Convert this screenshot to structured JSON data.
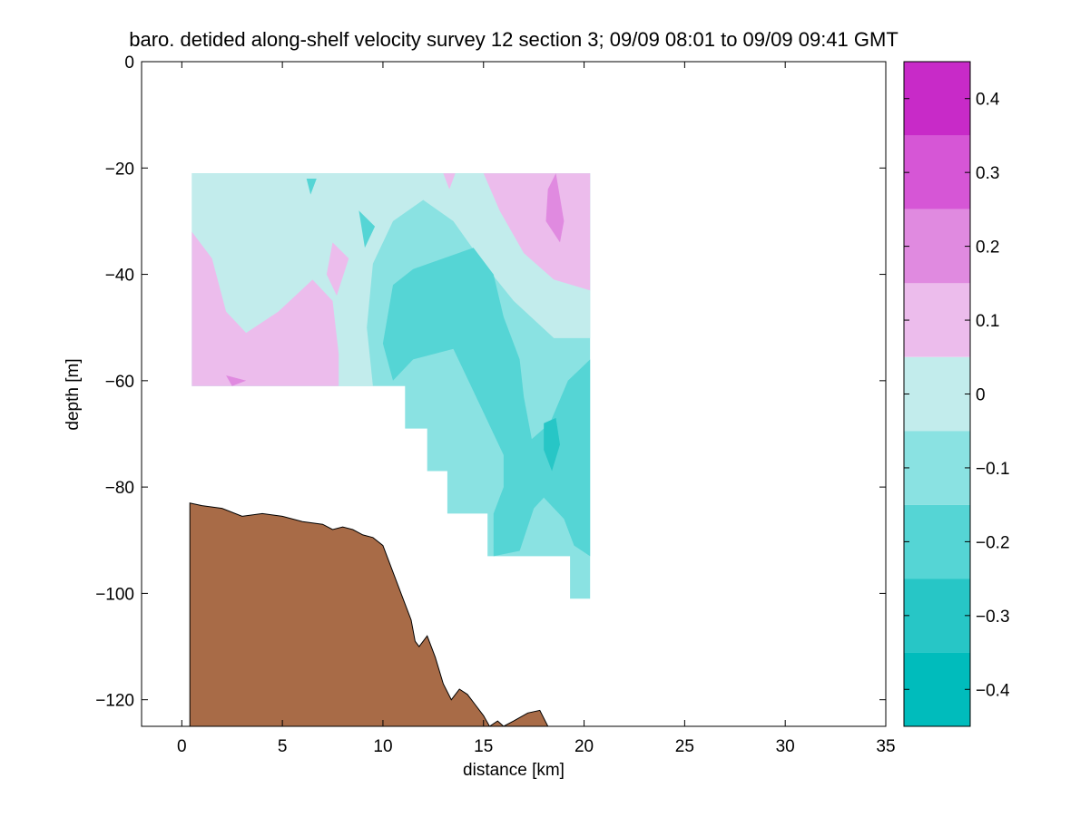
{
  "chart_data": {
    "type": "contour",
    "title": "baro. detided along-shelf velocity survey 12 section 3; 09/09 08:01 to 09/09 09:41 GMT",
    "xlabel": "distance [km]",
    "ylabel": "depth [m]",
    "xlim": [
      -2,
      35
    ],
    "ylim": [
      -125,
      0
    ],
    "xticks": [
      0,
      5,
      10,
      15,
      20,
      25,
      30,
      35
    ],
    "yticks": [
      0,
      -20,
      -40,
      -60,
      -80,
      -100,
      -120
    ],
    "colorbar": {
      "range": [
        -0.45,
        0.45
      ],
      "levels": [
        -0.45,
        -0.35,
        -0.25,
        -0.15,
        -0.05,
        0.05,
        0.15,
        0.25,
        0.35,
        0.45
      ],
      "colors": [
        "#00bcbc",
        "#27c6c6",
        "#55d5d5",
        "#8ae2e2",
        "#c2ecec",
        "#ecbcec",
        "#e08ae0",
        "#d656d6",
        "#c82ac8",
        "#bb00bb"
      ],
      "ticks": [
        -0.4,
        -0.3,
        -0.2,
        -0.1,
        0,
        0.1,
        0.2,
        0.3,
        0.4
      ],
      "tick_labels": [
        "−0.4",
        "−0.3",
        "−0.2",
        "−0.1",
        "0",
        "0.1",
        "0.2",
        "0.3",
        "0.4"
      ]
    },
    "data_extent": {
      "x_start": 0.5,
      "top_depth": -21,
      "steps": [
        {
          "x_end": 11.1,
          "bottom": -61
        },
        {
          "x_end": 12.2,
          "bottom": -69
        },
        {
          "x_end": 13.2,
          "bottom": -77
        },
        {
          "x_end": 15.2,
          "bottom": -85
        },
        {
          "x_end": 19.3,
          "bottom": -93
        },
        {
          "x_end": 20.3,
          "bottom": -101
        }
      ]
    },
    "velocity_regions": [
      {
        "level": -0.1,
        "points": [
          [
            0.5,
            -21
          ],
          [
            20.3,
            -21
          ],
          [
            20.3,
            -101
          ],
          [
            19.3,
            -101
          ],
          [
            19.3,
            -93
          ],
          [
            15.2,
            -93
          ],
          [
            15.2,
            -85
          ],
          [
            13.2,
            -85
          ],
          [
            13.2,
            -77
          ],
          [
            12.2,
            -77
          ],
          [
            12.2,
            -69
          ],
          [
            11.1,
            -69
          ],
          [
            11.1,
            -61
          ],
          [
            0.5,
            -61
          ]
        ]
      },
      {
        "level": 0,
        "points": [
          [
            0.5,
            -21
          ],
          [
            20.3,
            -21
          ],
          [
            20.3,
            -52
          ],
          [
            18.5,
            -52
          ],
          [
            16.5,
            -45
          ],
          [
            15.0,
            -38
          ],
          [
            13.5,
            -30
          ],
          [
            12.0,
            -26
          ],
          [
            10.5,
            -30
          ],
          [
            9.5,
            -38
          ],
          [
            9.2,
            -50
          ],
          [
            9.5,
            -61
          ],
          [
            0.5,
            -61
          ]
        ]
      },
      {
        "level": 0.1,
        "points": [
          [
            0.5,
            -32
          ],
          [
            1.5,
            -37
          ],
          [
            2.2,
            -47
          ],
          [
            3.2,
            -51
          ],
          [
            4.8,
            -47
          ],
          [
            6.5,
            -41
          ],
          [
            7.5,
            -45
          ],
          [
            7.8,
            -55
          ],
          [
            7.8,
            -61
          ],
          [
            0.5,
            -61
          ]
        ]
      },
      {
        "level": 0.1,
        "points": [
          [
            15.0,
            -21
          ],
          [
            20.3,
            -21
          ],
          [
            20.3,
            -43
          ],
          [
            18.5,
            -41
          ],
          [
            17.0,
            -36
          ],
          [
            15.8,
            -28
          ]
        ]
      },
      {
        "level": 0.1,
        "points": [
          [
            13.0,
            -21
          ],
          [
            13.6,
            -21
          ],
          [
            13.3,
            -24
          ]
        ]
      },
      {
        "level": 0.1,
        "points": [
          [
            7.5,
            -34
          ],
          [
            8.3,
            -37
          ],
          [
            7.7,
            -44
          ],
          [
            7.2,
            -40
          ]
        ]
      },
      {
        "level": 0.2,
        "points": [
          [
            18.2,
            -24
          ],
          [
            18.6,
            -21
          ],
          [
            19.0,
            -30
          ],
          [
            18.8,
            -34
          ],
          [
            18.1,
            -30
          ]
        ]
      },
      {
        "level": 0.2,
        "points": [
          [
            2.2,
            -59
          ],
          [
            3.2,
            -60
          ],
          [
            2.5,
            -61
          ]
        ]
      },
      {
        "level": -0.2,
        "points": [
          [
            13.0,
            -37
          ],
          [
            14.5,
            -35
          ],
          [
            15.5,
            -40
          ],
          [
            16.0,
            -48
          ],
          [
            16.8,
            -56
          ],
          [
            17.0,
            -63
          ],
          [
            17.4,
            -71
          ],
          [
            18.3,
            -68
          ],
          [
            19.2,
            -60
          ],
          [
            20.3,
            -56
          ],
          [
            20.3,
            -93
          ],
          [
            19.5,
            -91
          ],
          [
            19.0,
            -86
          ],
          [
            18.0,
            -82
          ],
          [
            17.5,
            -84
          ],
          [
            16.8,
            -92
          ],
          [
            15.5,
            -93
          ],
          [
            15.5,
            -85
          ],
          [
            16.0,
            -80
          ],
          [
            16.0,
            -74
          ],
          [
            15.0,
            -66
          ],
          [
            14.0,
            -58
          ],
          [
            13.5,
            -54
          ],
          [
            11.5,
            -56
          ],
          [
            10.5,
            -60
          ],
          [
            10.0,
            -53
          ],
          [
            10.5,
            -42
          ],
          [
            11.5,
            -39
          ]
        ]
      },
      {
        "level": -0.2,
        "points": [
          [
            6.2,
            -22
          ],
          [
            6.7,
            -22
          ],
          [
            6.4,
            -25
          ]
        ]
      },
      {
        "level": -0.2,
        "points": [
          [
            8.8,
            -28
          ],
          [
            9.6,
            -31
          ],
          [
            9.1,
            -35
          ]
        ]
      },
      {
        "level": -0.3,
        "points": [
          [
            18.0,
            -68
          ],
          [
            18.6,
            -67
          ],
          [
            18.8,
            -72
          ],
          [
            18.4,
            -77
          ],
          [
            18.0,
            -73
          ]
        ]
      }
    ],
    "seafloor_profile": [
      [
        0.4,
        -83
      ],
      [
        1,
        -83.5
      ],
      [
        2,
        -84
      ],
      [
        3,
        -85.5
      ],
      [
        4,
        -85
      ],
      [
        5,
        -85.5
      ],
      [
        6,
        -86.5
      ],
      [
        7,
        -87
      ],
      [
        7.5,
        -88
      ],
      [
        8,
        -87.5
      ],
      [
        8.5,
        -88
      ],
      [
        9,
        -89
      ],
      [
        9.5,
        -89.5
      ],
      [
        10,
        -91
      ],
      [
        10.5,
        -96
      ],
      [
        11,
        -101
      ],
      [
        11.4,
        -105
      ],
      [
        11.6,
        -109
      ],
      [
        11.8,
        -110
      ],
      [
        12.2,
        -108
      ],
      [
        12.6,
        -112
      ],
      [
        13,
        -117
      ],
      [
        13.4,
        -120
      ],
      [
        13.8,
        -118
      ],
      [
        14.2,
        -119
      ],
      [
        14.6,
        -121
      ],
      [
        15,
        -123
      ],
      [
        15.3,
        -125
      ],
      [
        15.7,
        -124
      ],
      [
        16,
        -125
      ],
      [
        16.5,
        -124
      ],
      [
        17.2,
        -122.5
      ],
      [
        17.8,
        -122
      ],
      [
        18.2,
        -125
      ]
    ],
    "colors": {
      "seafloor": "#a86b47",
      "axes": "#000000",
      "background": "#ffffff"
    }
  }
}
